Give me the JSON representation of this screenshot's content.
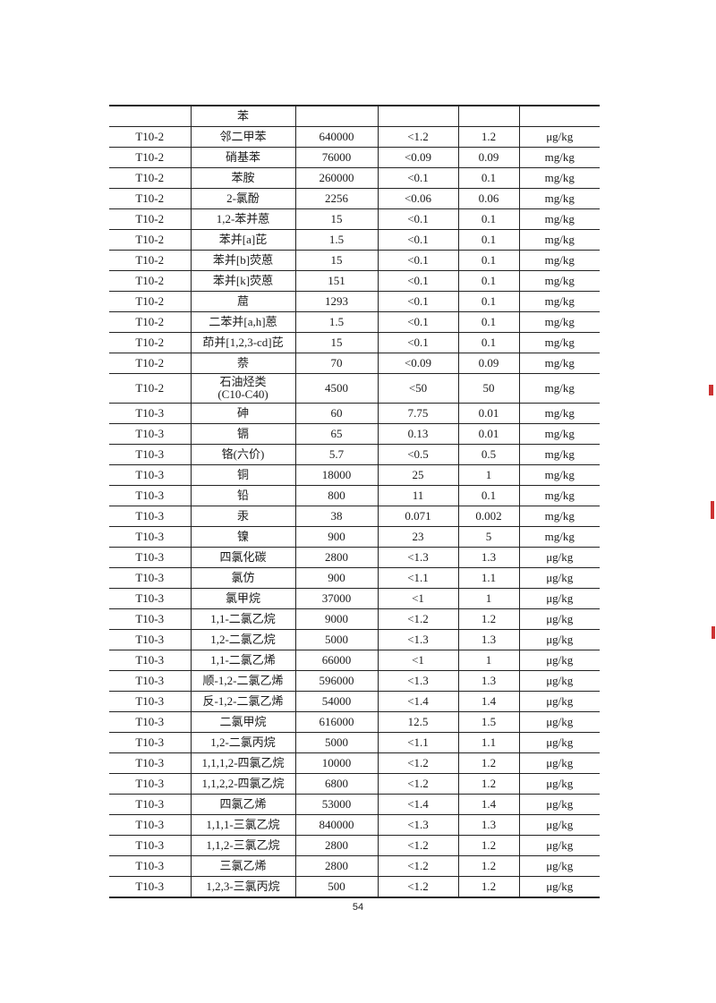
{
  "table": {
    "rows": [
      [
        "",
        "苯",
        "",
        "",
        "",
        ""
      ],
      [
        "T10-2",
        "邻二甲苯",
        "640000",
        "<1.2",
        "1.2",
        "μg/kg"
      ],
      [
        "T10-2",
        "硝基苯",
        "76000",
        "<0.09",
        "0.09",
        "mg/kg"
      ],
      [
        "T10-2",
        "苯胺",
        "260000",
        "<0.1",
        "0.1",
        "mg/kg"
      ],
      [
        "T10-2",
        "2-氯酚",
        "2256",
        "<0.06",
        "0.06",
        "mg/kg"
      ],
      [
        "T10-2",
        "1,2-苯并蒽",
        "15",
        "<0.1",
        "0.1",
        "mg/kg"
      ],
      [
        "T10-2",
        "苯并[a]芘",
        "1.5",
        "<0.1",
        "0.1",
        "mg/kg"
      ],
      [
        "T10-2",
        "苯并[b]荧蒽",
        "15",
        "<0.1",
        "0.1",
        "mg/kg"
      ],
      [
        "T10-2",
        "苯并[k]荧蒽",
        "151",
        "<0.1",
        "0.1",
        "mg/kg"
      ],
      [
        "T10-2",
        "䓛",
        "1293",
        "<0.1",
        "0.1",
        "mg/kg"
      ],
      [
        "T10-2",
        "二苯并[a,h]蒽",
        "1.5",
        "<0.1",
        "0.1",
        "mg/kg"
      ],
      [
        "T10-2",
        "茚并[1,2,3-cd]芘",
        "15",
        "<0.1",
        "0.1",
        "mg/kg"
      ],
      [
        "T10-2",
        "萘",
        "70",
        "<0.09",
        "0.09",
        "mg/kg"
      ],
      [
        "T10-2",
        "石油烃类\n(C10-C40)",
        "4500",
        "<50",
        "50",
        "mg/kg"
      ],
      [
        "T10-3",
        "砷",
        "60",
        "7.75",
        "0.01",
        "mg/kg"
      ],
      [
        "T10-3",
        "镉",
        "65",
        "0.13",
        "0.01",
        "mg/kg"
      ],
      [
        "T10-3",
        "铬(六价)",
        "5.7",
        "<0.5",
        "0.5",
        "mg/kg"
      ],
      [
        "T10-3",
        "铜",
        "18000",
        "25",
        "1",
        "mg/kg"
      ],
      [
        "T10-3",
        "铅",
        "800",
        "11",
        "0.1",
        "mg/kg"
      ],
      [
        "T10-3",
        "汞",
        "38",
        "0.071",
        "0.002",
        "mg/kg"
      ],
      [
        "T10-3",
        "镍",
        "900",
        "23",
        "5",
        "mg/kg"
      ],
      [
        "T10-3",
        "四氯化碳",
        "2800",
        "<1.3",
        "1.3",
        "μg/kg"
      ],
      [
        "T10-3",
        "氯仿",
        "900",
        "<1.1",
        "1.1",
        "μg/kg"
      ],
      [
        "T10-3",
        "氯甲烷",
        "37000",
        "<1",
        "1",
        "μg/kg"
      ],
      [
        "T10-3",
        "1,1-二氯乙烷",
        "9000",
        "<1.2",
        "1.2",
        "μg/kg"
      ],
      [
        "T10-3",
        "1,2-二氯乙烷",
        "5000",
        "<1.3",
        "1.3",
        "μg/kg"
      ],
      [
        "T10-3",
        "1,1-二氯乙烯",
        "66000",
        "<1",
        "1",
        "μg/kg"
      ],
      [
        "T10-3",
        "顺-1,2-二氯乙烯",
        "596000",
        "<1.3",
        "1.3",
        "μg/kg"
      ],
      [
        "T10-3",
        "反-1,2-二氯乙烯",
        "54000",
        "<1.4",
        "1.4",
        "μg/kg"
      ],
      [
        "T10-3",
        "二氯甲烷",
        "616000",
        "12.5",
        "1.5",
        "μg/kg"
      ],
      [
        "T10-3",
        "1,2-二氯丙烷",
        "5000",
        "<1.1",
        "1.1",
        "μg/kg"
      ],
      [
        "T10-3",
        "1,1,1,2-四氯乙烷",
        "10000",
        "<1.2",
        "1.2",
        "μg/kg"
      ],
      [
        "T10-3",
        "1,1,2,2-四氯乙烷",
        "6800",
        "<1.2",
        "1.2",
        "μg/kg"
      ],
      [
        "T10-3",
        "四氯乙烯",
        "53000",
        "<1.4",
        "1.4",
        "μg/kg"
      ],
      [
        "T10-3",
        "1,1,1-三氯乙烷",
        "840000",
        "<1.3",
        "1.3",
        "μg/kg"
      ],
      [
        "T10-3",
        "1,1,2-三氯乙烷",
        "2800",
        "<1.2",
        "1.2",
        "μg/kg"
      ],
      [
        "T10-3",
        "三氯乙烯",
        "2800",
        "<1.2",
        "1.2",
        "μg/kg"
      ],
      [
        "T10-3",
        "1,2,3-三氯丙烷",
        "500",
        "<1.2",
        "1.2",
        "μg/kg"
      ]
    ]
  },
  "footer": {
    "page_number": "54"
  }
}
